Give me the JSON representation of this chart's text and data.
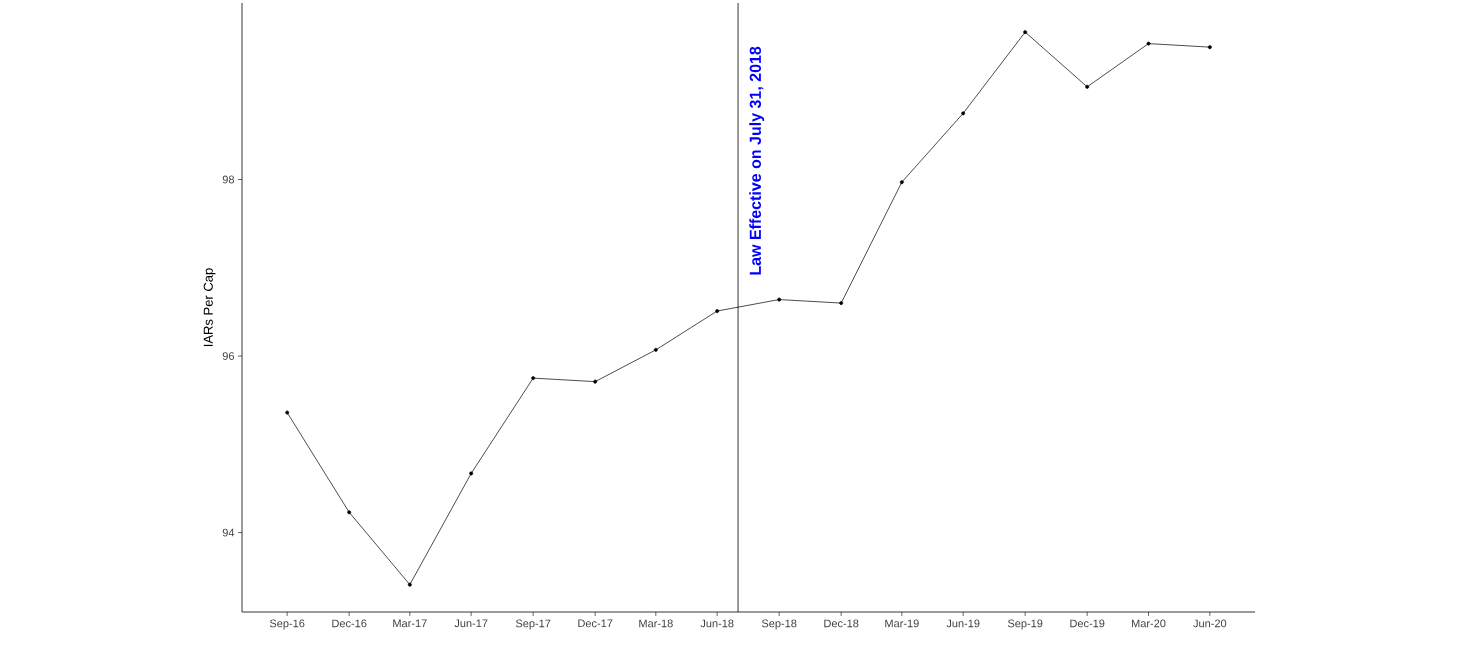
{
  "chart_data": {
    "type": "line",
    "ylabel": "IARs Per Cap",
    "x": [
      "2016-09-30",
      "2016-12-31",
      "2017-03-31",
      "2017-06-30",
      "2017-09-30",
      "2017-12-31",
      "2018-03-31",
      "2018-06-30",
      "2018-09-30",
      "2018-12-31",
      "2019-03-31",
      "2019-06-30",
      "2019-09-30",
      "2019-12-31",
      "2020-03-31",
      "2020-06-30"
    ],
    "series": [
      {
        "color": "#000000",
        "values": [
          95.36,
          94.23,
          93.41,
          94.67,
          95.75,
          95.71,
          96.07,
          96.51,
          96.64,
          96.6,
          97.97,
          98.75,
          99.67,
          99.05,
          99.54,
          99.5
        ]
      }
    ],
    "xlim": [
      "2016-07-25",
      "2020-09-05"
    ],
    "xticks": [
      {
        "value": "2016-09-30",
        "label": "Sep-16"
      },
      {
        "value": "2016-12-31",
        "label": "Dec-16"
      },
      {
        "value": "2017-03-31",
        "label": "Mar-17"
      },
      {
        "value": "2017-06-30",
        "label": "Jun-17"
      },
      {
        "value": "2017-09-30",
        "label": "Sep-17"
      },
      {
        "value": "2017-12-31",
        "label": "Dec-17"
      },
      {
        "value": "2018-03-31",
        "label": "Mar-18"
      },
      {
        "value": "2018-06-30",
        "label": "Jun-18"
      },
      {
        "value": "2018-09-30",
        "label": "Sep-18"
      },
      {
        "value": "2018-12-31",
        "label": "Dec-18"
      },
      {
        "value": "2019-03-31",
        "label": "Mar-19"
      },
      {
        "value": "2019-06-30",
        "label": "Jun-19"
      },
      {
        "value": "2019-09-30",
        "label": "Sep-19"
      },
      {
        "value": "2019-12-31",
        "label": "Dec-19"
      },
      {
        "value": "2020-03-31",
        "label": "Mar-20"
      },
      {
        "value": "2020-06-30",
        "label": "Jun-20"
      }
    ],
    "ylim": [
      93.1,
      100
    ],
    "yticks": [
      94,
      96,
      98
    ],
    "ref_lines": [
      {
        "axis": "x",
        "value": "2018-07-31",
        "label": "Law Effective on July 31, 2018",
        "color": "#000000"
      }
    ],
    "marker": "circle",
    "line_style": "solid",
    "grid": false
  }
}
